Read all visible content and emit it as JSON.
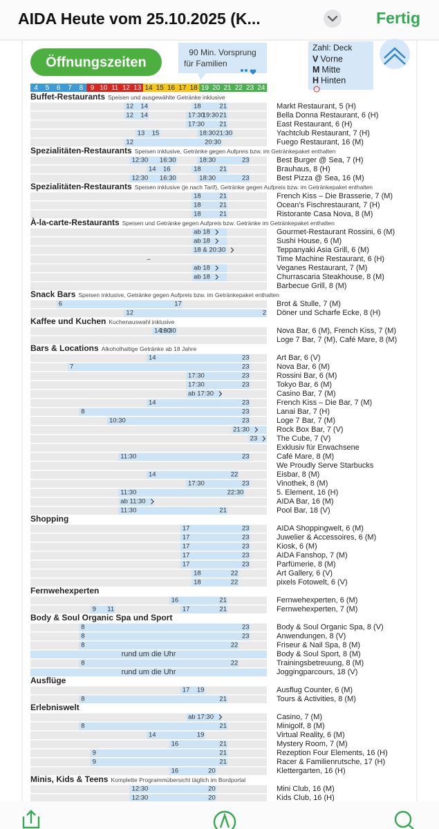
{
  "app_bar": {
    "title": "AIDA Heute vom 25.10.2025 (K...",
    "done": "Fertig"
  },
  "header": {
    "button": "Öffnungszeiten",
    "family_note": [
      "90 Min. Vorsprung",
      "für Familien"
    ],
    "legend": {
      "title": "Zahl: Deck",
      "items": [
        {
          "key": "V",
          "label": "Vorne"
        },
        {
          "key": "M",
          "label": "Mitte"
        },
        {
          "key": "H",
          "label": "Hinten"
        }
      ]
    }
  },
  "hour_scale": {
    "hours": [
      4,
      5,
      6,
      7,
      8,
      9,
      10,
      11,
      12,
      13,
      14,
      15,
      16,
      17,
      18,
      19,
      20,
      21,
      22,
      23,
      24
    ],
    "colors": [
      "#3d9ad9",
      "#3d9ad9",
      "#3d9ad9",
      "#3d9ad9",
      "#3d9ad9",
      "#d7261f",
      "#d7261f",
      "#d7261f",
      "#d7261f",
      "#d7261f",
      "#f5c518",
      "#f5c518",
      "#f5c518",
      "#f5c518",
      "#f5c518",
      "#4caf50",
      "#4caf50",
      "#4caf50",
      "#4caf50",
      "#4caf50",
      "#4caf50"
    ],
    "text_colors": [
      "#fff",
      "#fff",
      "#fff",
      "#fff",
      "#fff",
      "#fff",
      "#fff",
      "#fff",
      "#fff",
      "#fff",
      "#222",
      "#222",
      "#222",
      "#222",
      "#222",
      "#fff",
      "#fff",
      "#fff",
      "#fff",
      "#fff",
      "#fff"
    ]
  },
  "sections": [
    {
      "title": "Buffet-Restaurants",
      "subtitle": "Speisen und ausgewählte Getränke inklusive",
      "rows": [
        {
          "name": "Markt Restaurant, 5 (H)",
          "times": [
            [
              "12",
              "14"
            ],
            [
              "18",
              "21"
            ]
          ]
        },
        {
          "name": "Bella Donna Restaurant, 6 (H)",
          "times": [
            [
              "12",
              "14"
            ],
            [
              "17:30",
              "19:30",
              "21"
            ]
          ]
        },
        {
          "name": "East Restaurant, 6 (H)",
          "times": [
            [
              "17:30",
              "21"
            ]
          ]
        },
        {
          "name": "Yachtclub Restaurant, 7 (H)",
          "times": [
            [
              "13",
              "15"
            ],
            [
              "18:30",
              "21:30"
            ]
          ]
        },
        {
          "name": "Fuego Restaurant, 16 (M)",
          "times": [
            [
              "12",
              "20:30"
            ]
          ]
        }
      ]
    },
    {
      "title": "Spezialitäten-Restaurants",
      "subtitle": "Speisen inklusive, Getränke gegen Aufpreis bzw. im Getränkepaket enthalten",
      "rows": [
        {
          "name": "Best Burger @ Sea, 7 (H)",
          "times": [
            [
              "12:30",
              "16:30"
            ],
            [
              "18:30",
              "23"
            ]
          ]
        },
        {
          "name": "Brauhaus, 8 (H)",
          "times": [
            [
              "14",
              "16"
            ],
            [
              "18",
              "21"
            ]
          ]
        },
        {
          "name": "Best Pizza @ Sea, 16 (M)",
          "times": [
            [
              "12:30",
              "16:30"
            ],
            [
              "18:30",
              "23"
            ]
          ]
        }
      ]
    },
    {
      "title": "Spezialitäten-Restaurants",
      "subtitle": "Speisen inklusive (je nach Tarif), Getränke gegen Aufpreis bzw. im Getränkepaket enthalten",
      "rows": [
        {
          "name": "French Kiss – Die Brasserie, 7 (M)",
          "times": [
            [
              "18",
              "21"
            ]
          ]
        },
        {
          "name": "Ocean’s Fischrestaurant, 7 (H)",
          "times": [
            [
              "18",
              "21"
            ]
          ]
        },
        {
          "name": "Ristorante Casa Nova, 8 (M)",
          "times": [
            [
              "18",
              "21"
            ]
          ]
        }
      ]
    },
    {
      "title": "À-la-carte-Restaurants",
      "subtitle": "Speisen und Getränke gegen Aufpreis bzw. Getränke im Getränkepaket enthalten",
      "rows": [
        {
          "name": "Gourmet-Restaurant Rossini, 6 (M)",
          "times": [
            [
              "ab 18"
            ]
          ]
        },
        {
          "name": "Sushi House, 6 (M)",
          "times": [
            [
              "ab 18"
            ]
          ]
        },
        {
          "name": "Teppanyaki Asia Grill, 6 (M)",
          "times": [
            [
              "18 & 20:30"
            ]
          ]
        },
        {
          "name": "Time Machine Restaurant, 6 (H)",
          "times": [
            [
              "–"
            ]
          ]
        },
        {
          "name": "Veganes Restaurant, 7 (M)",
          "times": [
            [
              "ab 18"
            ]
          ]
        },
        {
          "name": "Churrascaria Steakhouse, 8 (M)",
          "times": [
            [
              "ab 18"
            ]
          ]
        },
        {
          "name": "Barbecue Grill, 8 (M)"
        }
      ]
    },
    {
      "title": "Snack Bars",
      "subtitle": "Speisen inklusive, Getränke gegen Aufpreis bzw. im Getränkepaket enthalten",
      "rows": [
        {
          "name": "Brot & Stulle, 7 (M)",
          "times": [
            [
              "6",
              "17"
            ]
          ]
        },
        {
          "name": "Döner und Scharfe Ecke, 8 (H)",
          "times": [
            [
              "12",
              "2"
            ]
          ]
        }
      ]
    },
    {
      "title": "Kaffee und Kuchen",
      "subtitle": "Kuchenauswahl inklusive",
      "rows": [
        {
          "name": "Nova Bar, 6 (M), French Kiss, 7 (M)",
          "times": [
            [
              "14:30",
              "16:30"
            ]
          ]
        },
        {
          "name": "Loge 7 Bar, 7 (M), Café Mare, 8 (M)"
        }
      ]
    },
    {
      "title": "Bars & Locations",
      "subtitle": "Alkoholhaltige Getränke ab 18 Jahre",
      "rows": [
        {
          "name": "Art Bar, 6 (V)",
          "times": [
            [
              "14",
              "23"
            ]
          ]
        },
        {
          "name": "Nova Bar, 6 (M)",
          "times": [
            [
              "7",
              "23"
            ]
          ]
        },
        {
          "name": "Rossini Bar, 6 (M)",
          "times": [
            [
              "17:30",
              "23"
            ]
          ]
        },
        {
          "name": "Tokyo Bar, 6 (M)",
          "times": [
            [
              "17:30",
              "23"
            ]
          ]
        },
        {
          "name": "Casino Bar, 7 (M)",
          "times": [
            [
              "ab 17:30"
            ]
          ]
        },
        {
          "name": "French Kiss – Die Bar, 7 (M)",
          "times": [
            [
              "14",
              "23"
            ]
          ]
        },
        {
          "name": "Lanai Bar, 7 (H)",
          "times": [
            [
              "8",
              "23"
            ]
          ]
        },
        {
          "name": "Loge 7 Bar, 7 (M)",
          "times": [
            [
              "10:30",
              "23"
            ]
          ]
        },
        {
          "name": "Rock Box Bar, 7 (V)",
          "times": [
            [
              "21:30"
            ]
          ]
        },
        {
          "name": "The Cube, 7 (V)",
          "times": [
            [
              "23"
            ]
          ]
        },
        {
          "name": "Exklusiv für Erwachsene"
        },
        {
          "name": "Café Mare, 8 (M)",
          "times": [
            [
              "11:30",
              "23"
            ]
          ]
        },
        {
          "name": "We Proudly Serve Starbucks"
        },
        {
          "name": "Eisbar, 8 (M)",
          "times": [
            [
              "14",
              "22"
            ]
          ]
        },
        {
          "name": "Vinothek, 8 (M)",
          "times": [
            [
              "17:30",
              "23"
            ]
          ]
        },
        {
          "name": "5. Element, 16 (H)",
          "times": [
            [
              "11:30",
              "22:30"
            ]
          ]
        },
        {
          "name": "AIDA Bar, 16 (M)",
          "times": [
            [
              "ab 11:30"
            ]
          ]
        },
        {
          "name": "Pool Bar, 18 (V)",
          "times": [
            [
              "11:30",
              "21"
            ]
          ]
        }
      ]
    },
    {
      "title": "Shopping",
      "rows": [
        {
          "name": "AIDA Shoppingwelt, 6 (M)",
          "times": [
            [
              "17",
              "23"
            ]
          ]
        },
        {
          "name": "Juwelier & Accessoires, 6 (M)",
          "times": [
            [
              "17",
              "23"
            ]
          ]
        },
        {
          "name": "Kiosk, 6 (M)",
          "times": [
            [
              "17",
              "23"
            ]
          ]
        },
        {
          "name": "AIDA Fanshop, 7 (M)",
          "times": [
            [
              "17",
              "23"
            ]
          ]
        },
        {
          "name": "Parfümerie, 8 (M)",
          "times": [
            [
              "17",
              "23"
            ]
          ]
        },
        {
          "name": "Art Gallery, 6 (V)",
          "times": [
            [
              "18",
              "22"
            ]
          ]
        },
        {
          "name": "pixels Fotowelt, 6 (V)",
          "times": [
            [
              "18",
              "22"
            ]
          ]
        }
      ]
    },
    {
      "title": "Fernwehexperten",
      "rows": [
        {
          "name": "Fernwehexperten, 6 (M)",
          "times": [
            [
              "16",
              "21"
            ]
          ]
        },
        {
          "name": "Fernwehexperten, 7 (M)",
          "times": [
            [
              "9",
              "11"
            ],
            [
              "17",
              "21"
            ]
          ]
        }
      ]
    },
    {
      "title": "Body & Soul Organic Spa und Sport",
      "rows": [
        {
          "name": "Body & Soul Organic Spa, 8 (V)",
          "times": [
            [
              "8",
              "23"
            ]
          ]
        },
        {
          "name": "Anwendungen, 8 (V)",
          "times": [
            [
              "8",
              "23"
            ]
          ]
        },
        {
          "name": "Friseur & Nail Spa, 8 (M)",
          "times": [
            [
              "8",
              "22"
            ]
          ]
        },
        {
          "name": "Body & Soul Sport, 8 (M)",
          "times": [
            [
              "rund um die Uhr"
            ]
          ]
        },
        {
          "name": "Trainingsbetreuung, 8 (M)",
          "times": [
            [
              "8",
              "22"
            ]
          ]
        },
        {
          "name": "Joggingparcours, 18 (V)",
          "times": [
            [
              "rund um die Uhr"
            ]
          ]
        }
      ]
    },
    {
      "title": "Ausflüge",
      "rows": [
        {
          "name": "Ausflug Counter, 6 (M)",
          "times": [
            [
              "17",
              "19"
            ]
          ]
        },
        {
          "name": "Tours & Activities, 8 (M)",
          "times": [
            [
              "8",
              "21"
            ]
          ]
        }
      ]
    },
    {
      "title": "Erlebniswelt",
      "rows": [
        {
          "name": "Casino, 7 (M)",
          "times": [
            [
              "ab 17:30"
            ]
          ]
        },
        {
          "name": "Minigolf, 8 (M)",
          "times": [
            [
              "8",
              "21"
            ]
          ]
        },
        {
          "name": "Virtual Reality, 6 (M)",
          "times": [
            [
              "14",
              "19"
            ]
          ]
        },
        {
          "name": "Mystery Room, 7 (M)",
          "times": [
            [
              "16",
              "21"
            ]
          ]
        },
        {
          "name": "Rezeption Four Elements, 16 (H)",
          "times": [
            [
              "9",
              "21"
            ]
          ]
        },
        {
          "name": "Racer & Familienrutsche, 17 (H)",
          "times": [
            [
              "9",
              "21"
            ]
          ]
        },
        {
          "name": "Klettergarten, 16 (H)",
          "times": [
            [
              "16",
              "20"
            ]
          ]
        }
      ]
    },
    {
      "title": "Minis, Kids & Teens",
      "subtitle": "Komplette Programmübersicht täglich im Bordportal",
      "rows": [
        {
          "name": "Mini Club, 16 (M)",
          "times": [
            [
              "12:30",
              "20"
            ]
          ]
        },
        {
          "name": "Kids Club, 16 (H)",
          "times": [
            [
              "12:30",
              "20"
            ]
          ]
        }
      ]
    }
  ]
}
